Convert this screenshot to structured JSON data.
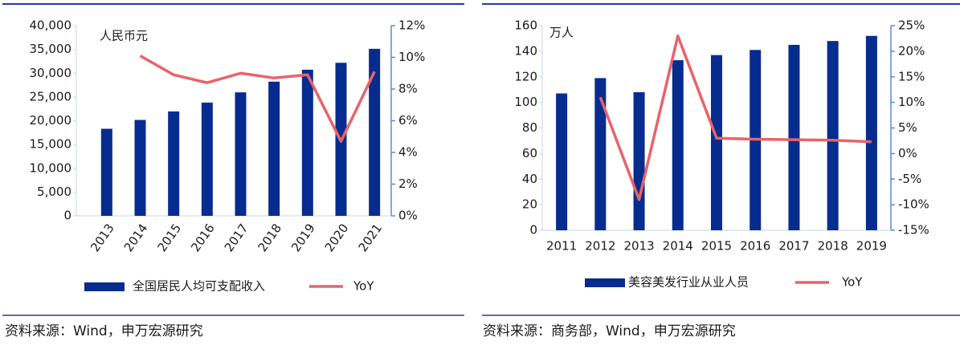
{
  "chart_data": [
    {
      "type": "bar",
      "y_label": "人民币元",
      "source": "资料来源：Wind，申万宏源研究",
      "categories": [
        "2013",
        "2014",
        "2015",
        "2016",
        "2017",
        "2018",
        "2019",
        "2020",
        "2021"
      ],
      "series": [
        {
          "name": "全国居民人均可支配收入",
          "type": "bar",
          "color": "#072c8f",
          "values": [
            18311,
            20167,
            21966,
            23821,
            25974,
            28228,
            30733,
            32189,
            35128
          ]
        },
        {
          "name": "YoY",
          "type": "line",
          "axis": "y2",
          "color": "#e8636a",
          "values": [
            null,
            10.1,
            8.9,
            8.4,
            9.0,
            8.7,
            8.9,
            4.7,
            9.1
          ]
        }
      ],
      "ylim": [
        0,
        40000
      ],
      "yticks": [
        0,
        {
          "value": 5000,
          "label": "5,000"
        },
        {
          "value": 10000,
          "label": "10,000"
        },
        {
          "value": 15000,
          "label": "15,000"
        },
        {
          "value": 20000,
          "label": "20,000"
        },
        {
          "value": 25000,
          "label": "25,000"
        },
        {
          "value": 30000,
          "label": "30,000"
        },
        {
          "value": 35000,
          "label": "35,000"
        },
        {
          "value": 40000,
          "label": "40,000"
        }
      ],
      "y2lim": [
        0,
        12
      ],
      "y2ticks": [
        {
          "value": 0,
          "label": "0%"
        },
        {
          "value": 2,
          "label": "2%"
        },
        {
          "value": 4,
          "label": "4%"
        },
        {
          "value": 6,
          "label": "6%"
        },
        {
          "value": 8,
          "label": "8%"
        },
        {
          "value": 10,
          "label": "10%"
        },
        {
          "value": 12,
          "label": "12%"
        }
      ]
    },
    {
      "type": "bar",
      "y_label": "万人",
      "source": "资料来源：商务部，Wind，申万宏源研究",
      "categories": [
        "2011",
        "2012",
        "2013",
        "2014",
        "2015",
        "2016",
        "2017",
        "2018",
        "2019"
      ],
      "series": [
        {
          "name": "美容美发行业从业人员",
          "type": "bar",
          "color": "#072c8f",
          "values": [
            107,
            119,
            108,
            133,
            137,
            141,
            145,
            148,
            152
          ]
        },
        {
          "name": "YoY",
          "type": "line",
          "axis": "y2",
          "color": "#e8636a",
          "values": [
            null,
            11,
            -9,
            23,
            3,
            2.8,
            2.7,
            2.6,
            2.3
          ]
        }
      ],
      "ylim": [
        0,
        160
      ],
      "yticks": [
        0,
        20,
        40,
        60,
        80,
        100,
        120,
        140,
        160
      ],
      "y2lim": [
        -15,
        25
      ],
      "y2ticks": [
        {
          "value": -15,
          "label": "-15%"
        },
        {
          "value": -10,
          "label": "-10%"
        },
        {
          "value": -5,
          "label": "-5%"
        },
        {
          "value": 0,
          "label": "0%"
        },
        {
          "value": 5,
          "label": "5%"
        },
        {
          "value": 10,
          "label": "10%"
        },
        {
          "value": 15,
          "label": "15%"
        },
        {
          "value": 20,
          "label": "20%"
        },
        {
          "value": 25,
          "label": "25%"
        }
      ]
    }
  ]
}
